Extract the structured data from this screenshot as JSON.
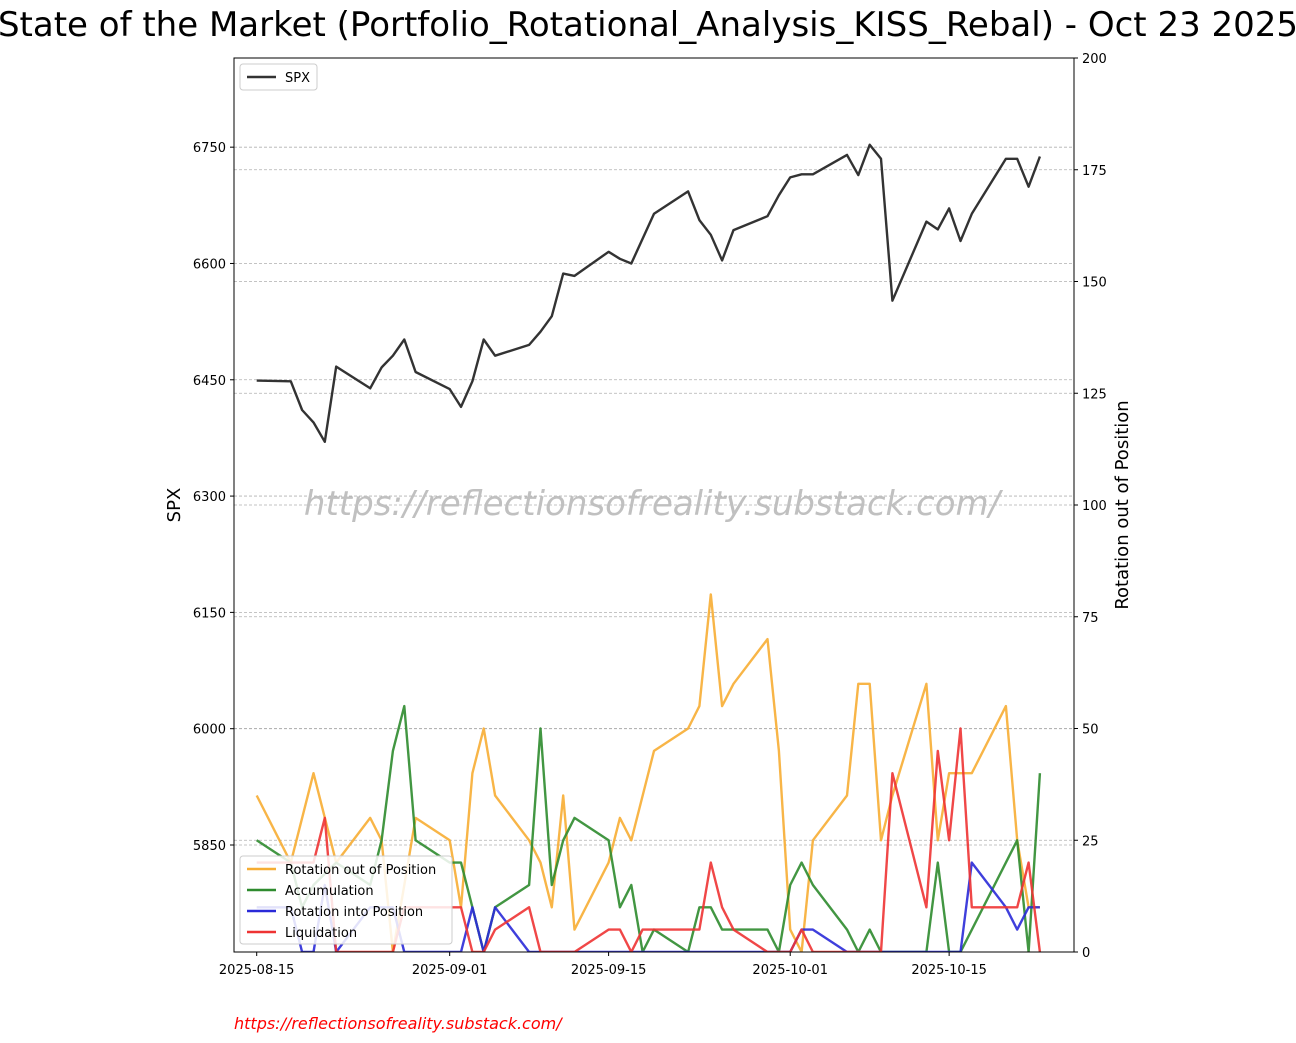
{
  "title": "State of the Market (Portfolio_Rotational_Analysis_KISS_Rebal) - Oct 23 2025",
  "watermark": "https://reflectionsofreality.substack.com/",
  "footer_link": "https://reflectionsofreality.substack.com/",
  "chart_data": {
    "type": "line",
    "title": "State of the Market (Portfolio_Rotational_Analysis_KISS_Rebal) - Oct 23 2025",
    "ylabel_left": "SPX",
    "ylabel_right": "Rotation out of Position",
    "ylim_left": [
      5712,
      6865
    ],
    "ylim_right": [
      0,
      200
    ],
    "y_ticks_left": [
      5850,
      6000,
      6150,
      6300,
      6450,
      6600,
      6750
    ],
    "y_ticks_right": [
      0,
      25,
      50,
      75,
      100,
      125,
      150,
      175,
      200
    ],
    "xlim": [
      "2025-08-15",
      "2025-10-23"
    ],
    "x_ticks": [
      "2025-08-15",
      "2025-09-01",
      "2025-09-15",
      "2025-10-01",
      "2025-10-15"
    ],
    "grid": "horizontal dashed",
    "legend_upper": {
      "placement": "top-left",
      "entries": [
        "SPX"
      ]
    },
    "legend_lower": {
      "placement": "bottom-left",
      "entries": [
        "Rotation out of Position",
        "Accumulation",
        "Rotation into Position",
        "Liquidation"
      ]
    },
    "colors": {
      "SPX": "#333333",
      "Rotation out of Position": "#f7ad33",
      "Accumulation": "#2e8b2e",
      "Rotation into Position": "#2a2ad8",
      "Liquidation": "#ee3333"
    },
    "series": [
      {
        "name": "SPX",
        "axis": "left",
        "points": [
          [
            "2025-08-15",
            6449
          ],
          [
            "2025-08-18",
            6448
          ],
          [
            "2025-08-19",
            6411
          ],
          [
            "2025-08-20",
            6395
          ],
          [
            "2025-08-21",
            6370
          ],
          [
            "2025-08-22",
            6467
          ],
          [
            "2025-08-25",
            6439
          ],
          [
            "2025-08-26",
            6466
          ],
          [
            "2025-08-27",
            6481
          ],
          [
            "2025-08-28",
            6502
          ],
          [
            "2025-08-29",
            6460
          ],
          [
            "2025-09-01",
            6438
          ],
          [
            "2025-09-02",
            6415
          ],
          [
            "2025-09-03",
            6448
          ],
          [
            "2025-09-04",
            6502
          ],
          [
            "2025-09-05",
            6481
          ],
          [
            "2025-09-08",
            6495
          ],
          [
            "2025-09-09",
            6512
          ],
          [
            "2025-09-10",
            6532
          ],
          [
            "2025-09-11",
            6587
          ],
          [
            "2025-09-12",
            6584
          ],
          [
            "2025-09-15",
            6615
          ],
          [
            "2025-09-16",
            6606
          ],
          [
            "2025-09-17",
            6600
          ],
          [
            "2025-09-19",
            6664
          ],
          [
            "2025-09-22",
            6693
          ],
          [
            "2025-09-23",
            6656
          ],
          [
            "2025-09-24",
            6637
          ],
          [
            "2025-09-25",
            6604
          ],
          [
            "2025-09-26",
            6643
          ],
          [
            "2025-09-29",
            6661
          ],
          [
            "2025-09-30",
            6688
          ],
          [
            "2025-10-01",
            6711
          ],
          [
            "2025-10-02",
            6715
          ],
          [
            "2025-10-03",
            6715
          ],
          [
            "2025-10-06",
            6740
          ],
          [
            "2025-10-07",
            6714
          ],
          [
            "2025-10-08",
            6753
          ],
          [
            "2025-10-09",
            6735
          ],
          [
            "2025-10-10",
            6552
          ],
          [
            "2025-10-13",
            6654
          ],
          [
            "2025-10-14",
            6644
          ],
          [
            "2025-10-15",
            6671
          ],
          [
            "2025-10-16",
            6629
          ],
          [
            "2025-10-17",
            6664
          ],
          [
            "2025-10-20",
            6735
          ],
          [
            "2025-10-21",
            6735
          ],
          [
            "2025-10-22",
            6699
          ],
          [
            "2025-10-23",
            6738
          ]
        ]
      },
      {
        "name": "Rotation out of Position",
        "axis": "right",
        "points": [
          [
            "2025-08-15",
            35
          ],
          [
            "2025-08-18",
            20
          ],
          [
            "2025-08-20",
            40
          ],
          [
            "2025-08-22",
            20
          ],
          [
            "2025-08-25",
            30
          ],
          [
            "2025-08-26",
            25
          ],
          [
            "2025-08-27",
            0
          ],
          [
            "2025-08-28",
            15
          ],
          [
            "2025-08-29",
            30
          ],
          [
            "2025-09-01",
            25
          ],
          [
            "2025-09-02",
            10
          ],
          [
            "2025-09-03",
            40
          ],
          [
            "2025-09-04",
            50
          ],
          [
            "2025-09-05",
            35
          ],
          [
            "2025-09-08",
            25
          ],
          [
            "2025-09-09",
            20
          ],
          [
            "2025-09-10",
            10
          ],
          [
            "2025-09-11",
            35
          ],
          [
            "2025-09-12",
            5
          ],
          [
            "2025-09-15",
            20
          ],
          [
            "2025-09-16",
            30
          ],
          [
            "2025-09-17",
            25
          ],
          [
            "2025-09-19",
            45
          ],
          [
            "2025-09-22",
            50
          ],
          [
            "2025-09-23",
            55
          ],
          [
            "2025-09-24",
            80
          ],
          [
            "2025-09-25",
            55
          ],
          [
            "2025-09-26",
            60
          ],
          [
            "2025-09-29",
            70
          ],
          [
            "2025-09-30",
            45
          ],
          [
            "2025-10-01",
            5
          ],
          [
            "2025-10-02",
            0
          ],
          [
            "2025-10-03",
            25
          ],
          [
            "2025-10-06",
            35
          ],
          [
            "2025-10-07",
            60
          ],
          [
            "2025-10-08",
            60
          ],
          [
            "2025-10-09",
            25
          ],
          [
            "2025-10-10",
            35
          ],
          [
            "2025-10-13",
            60
          ],
          [
            "2025-10-14",
            25
          ],
          [
            "2025-10-15",
            40
          ],
          [
            "2025-10-16",
            40
          ],
          [
            "2025-10-17",
            40
          ],
          [
            "2025-10-20",
            55
          ],
          [
            "2025-10-21",
            25
          ],
          [
            "2025-10-22",
            10
          ],
          [
            "2025-10-23",
            10
          ]
        ]
      },
      {
        "name": "Accumulation",
        "axis": "right",
        "points": [
          [
            "2025-08-15",
            25
          ],
          [
            "2025-08-18",
            20
          ],
          [
            "2025-08-19",
            10
          ],
          [
            "2025-08-20",
            15
          ],
          [
            "2025-08-22",
            20
          ],
          [
            "2025-08-25",
            15
          ],
          [
            "2025-08-26",
            25
          ],
          [
            "2025-08-27",
            45
          ],
          [
            "2025-08-28",
            55
          ],
          [
            "2025-08-29",
            25
          ],
          [
            "2025-09-01",
            20
          ],
          [
            "2025-09-02",
            20
          ],
          [
            "2025-09-03",
            10
          ],
          [
            "2025-09-04",
            0
          ],
          [
            "2025-09-05",
            10
          ],
          [
            "2025-09-08",
            15
          ],
          [
            "2025-09-09",
            50
          ],
          [
            "2025-09-10",
            15
          ],
          [
            "2025-09-11",
            25
          ],
          [
            "2025-09-12",
            30
          ],
          [
            "2025-09-15",
            25
          ],
          [
            "2025-09-16",
            10
          ],
          [
            "2025-09-17",
            15
          ],
          [
            "2025-09-18",
            0
          ],
          [
            "2025-09-19",
            5
          ],
          [
            "2025-09-22",
            0
          ],
          [
            "2025-09-23",
            10
          ],
          [
            "2025-09-24",
            10
          ],
          [
            "2025-09-25",
            5
          ],
          [
            "2025-09-26",
            5
          ],
          [
            "2025-09-29",
            5
          ],
          [
            "2025-09-30",
            0
          ],
          [
            "2025-10-01",
            15
          ],
          [
            "2025-10-02",
            20
          ],
          [
            "2025-10-03",
            15
          ],
          [
            "2025-10-06",
            5
          ],
          [
            "2025-10-07",
            0
          ],
          [
            "2025-10-08",
            5
          ],
          [
            "2025-10-09",
            0
          ],
          [
            "2025-10-13",
            0
          ],
          [
            "2025-10-14",
            20
          ],
          [
            "2025-10-15",
            0
          ],
          [
            "2025-10-16",
            0
          ],
          [
            "2025-10-20",
            20
          ],
          [
            "2025-10-21",
            25
          ],
          [
            "2025-10-22",
            0
          ],
          [
            "2025-10-23",
            40
          ]
        ]
      },
      {
        "name": "Rotation into Position",
        "axis": "right",
        "points": [
          [
            "2025-08-15",
            10
          ],
          [
            "2025-08-18",
            10
          ],
          [
            "2025-08-19",
            0
          ],
          [
            "2025-08-20",
            0
          ],
          [
            "2025-08-21",
            15
          ],
          [
            "2025-08-22",
            0
          ],
          [
            "2025-08-25",
            10
          ],
          [
            "2025-08-26",
            10
          ],
          [
            "2025-08-27",
            10
          ],
          [
            "2025-08-28",
            0
          ],
          [
            "2025-09-01",
            0
          ],
          [
            "2025-09-02",
            0
          ],
          [
            "2025-09-03",
            10
          ],
          [
            "2025-09-04",
            0
          ],
          [
            "2025-09-05",
            10
          ],
          [
            "2025-09-08",
            0
          ],
          [
            "2025-10-01",
            0
          ],
          [
            "2025-10-02",
            5
          ],
          [
            "2025-10-03",
            5
          ],
          [
            "2025-10-06",
            0
          ],
          [
            "2025-10-16",
            0
          ],
          [
            "2025-10-17",
            20
          ],
          [
            "2025-10-20",
            10
          ],
          [
            "2025-10-21",
            5
          ],
          [
            "2025-10-22",
            10
          ],
          [
            "2025-10-23",
            10
          ]
        ]
      },
      {
        "name": "Liquidation",
        "axis": "right",
        "points": [
          [
            "2025-08-15",
            20
          ],
          [
            "2025-08-18",
            20
          ],
          [
            "2025-08-20",
            20
          ],
          [
            "2025-08-21",
            30
          ],
          [
            "2025-08-22",
            0
          ],
          [
            "2025-08-25",
            0
          ],
          [
            "2025-08-26",
            0
          ],
          [
            "2025-08-27",
            0
          ],
          [
            "2025-08-28",
            10
          ],
          [
            "2025-08-29",
            10
          ],
          [
            "2025-09-01",
            10
          ],
          [
            "2025-09-02",
            10
          ],
          [
            "2025-09-03",
            0
          ],
          [
            "2025-09-04",
            0
          ],
          [
            "2025-09-05",
            5
          ],
          [
            "2025-09-08",
            10
          ],
          [
            "2025-09-09",
            0
          ],
          [
            "2025-09-12",
            0
          ],
          [
            "2025-09-15",
            5
          ],
          [
            "2025-09-16",
            5
          ],
          [
            "2025-09-17",
            0
          ],
          [
            "2025-09-18",
            5
          ],
          [
            "2025-09-19",
            5
          ],
          [
            "2025-09-22",
            5
          ],
          [
            "2025-09-23",
            5
          ],
          [
            "2025-09-24",
            20
          ],
          [
            "2025-09-25",
            10
          ],
          [
            "2025-09-26",
            5
          ],
          [
            "2025-09-29",
            0
          ],
          [
            "2025-10-01",
            0
          ],
          [
            "2025-10-02",
            5
          ],
          [
            "2025-10-03",
            0
          ],
          [
            "2025-10-09",
            0
          ],
          [
            "2025-10-10",
            40
          ],
          [
            "2025-10-13",
            10
          ],
          [
            "2025-10-14",
            45
          ],
          [
            "2025-10-15",
            25
          ],
          [
            "2025-10-16",
            50
          ],
          [
            "2025-10-17",
            10
          ],
          [
            "2025-10-20",
            10
          ],
          [
            "2025-10-21",
            10
          ],
          [
            "2025-10-22",
            20
          ],
          [
            "2025-10-23",
            0
          ]
        ]
      }
    ]
  }
}
